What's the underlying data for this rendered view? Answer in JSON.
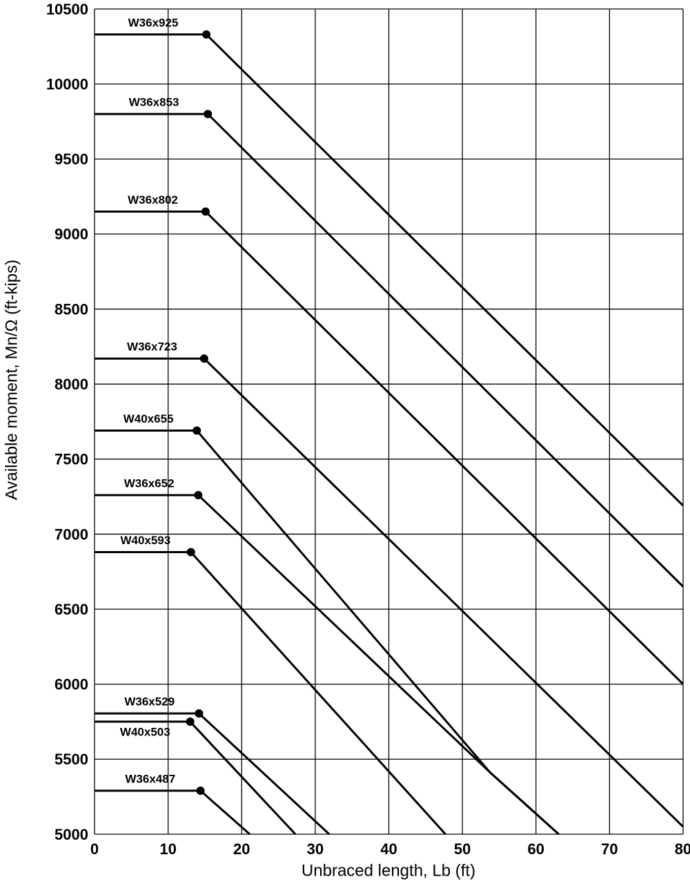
{
  "chart_data": {
    "type": "line",
    "x_label": "Unbraced length, Lb (ft)",
    "y_label": "Available moment, Mn/Ω (ft-kips)",
    "xlim": [
      0,
      80
    ],
    "xticks": [
      0,
      10,
      20,
      30,
      40,
      50,
      60,
      70,
      80
    ],
    "ylim": [
      5000,
      10500
    ],
    "yticks": [
      5000,
      5500,
      6000,
      6500,
      7000,
      7500,
      8000,
      8500,
      9000,
      9500,
      10000,
      10500
    ],
    "grid": true,
    "series": [
      {
        "name": "W36x925",
        "color": "#000000",
        "x": [
          0,
          15.2,
          80
        ],
        "values": [
          10330,
          10330,
          7190
        ]
      },
      {
        "name": "W36x853",
        "color": "#000000",
        "x": [
          0,
          15.4,
          80
        ],
        "values": [
          9800,
          9800,
          6650
        ]
      },
      {
        "name": "W36x802",
        "color": "#000000",
        "x": [
          0,
          15.1,
          80
        ],
        "values": [
          9150,
          9150,
          6000
        ]
      },
      {
        "name": "W36x723",
        "color": "#000000",
        "x": [
          0,
          14.9,
          80
        ],
        "values": [
          8170,
          8170,
          5050
        ]
      },
      {
        "name": "W40x655",
        "color": "#000000",
        "x": [
          0,
          13.9,
          53.8,
          63.1
        ],
        "values": [
          7690,
          7690,
          5410,
          5000
        ]
      },
      {
        "name": "W36x652",
        "color": "#000000",
        "x": [
          0,
          14.1,
          53.8,
          63.1
        ],
        "values": [
          7260,
          7260,
          5410,
          5000
        ]
      },
      {
        "name": "W40x593",
        "color": "#000000",
        "x": [
          0,
          13.1,
          47.7
        ],
        "values": [
          6880,
          6880,
          5000
        ]
      },
      {
        "name": "W36x529",
        "color": "#000000",
        "x": [
          0,
          14.2,
          31.9
        ],
        "values": [
          5805,
          5805,
          5000
        ]
      },
      {
        "name": "W40x503",
        "color": "#000000",
        "x": [
          0,
          13.0,
          27.3
        ],
        "values": [
          5750,
          5750,
          5000
        ]
      },
      {
        "name": "W36x487",
        "color": "#000000",
        "x": [
          0,
          14.4,
          21.1
        ],
        "values": [
          5290,
          5290,
          5000
        ]
      }
    ]
  }
}
